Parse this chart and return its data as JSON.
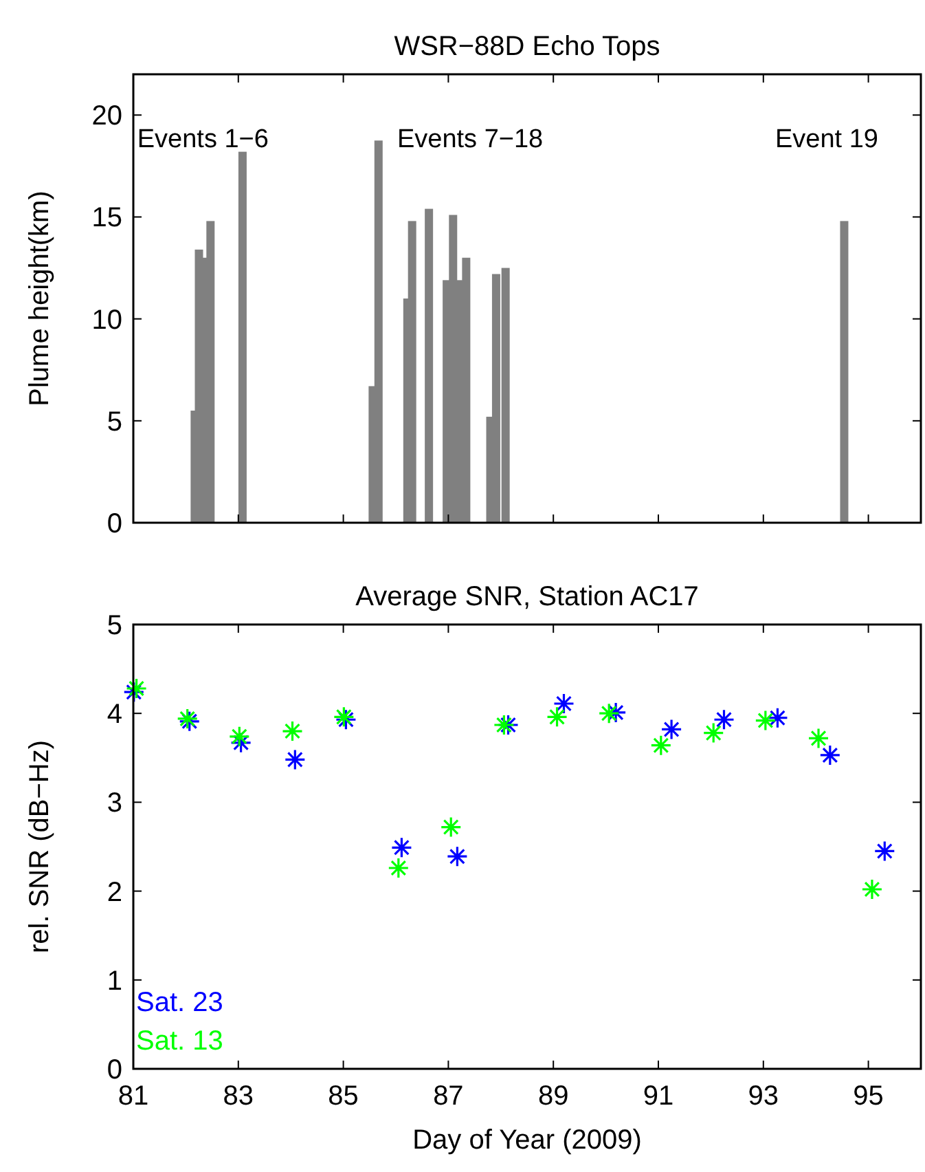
{
  "chart_data": [
    {
      "type": "bar",
      "title": "WSR−88D Echo Tops",
      "ylabel": "Plume height(km)",
      "color": "#808080",
      "x": [
        82.17,
        82.25,
        82.36,
        82.47,
        83.08,
        85.56,
        85.67,
        86.22,
        86.31,
        86.63,
        86.97,
        87.09,
        87.22,
        87.34,
        87.8,
        87.91,
        88.09,
        94.54
      ],
      "values": [
        5.5,
        13.4,
        13.0,
        14.8,
        18.2,
        6.7,
        18.75,
        11.0,
        14.8,
        15.4,
        11.9,
        15.1,
        11.9,
        13.0,
        5.2,
        12.2,
        12.5,
        14.8
      ],
      "xlim": [
        81,
        96
      ],
      "xticks": [
        {
          "value": 81,
          "label": null
        },
        {
          "value": 83,
          "label": null
        },
        {
          "value": 85,
          "label": null
        },
        {
          "value": 87,
          "label": null
        },
        {
          "value": 89,
          "label": null
        },
        {
          "value": 91,
          "label": null
        },
        {
          "value": 93,
          "label": null
        },
        {
          "value": 95,
          "label": null
        }
      ],
      "ylim": [
        0,
        22
      ],
      "yticks": [
        0,
        5,
        10,
        15,
        20
      ],
      "tick_labels": "y",
      "annotations": [
        "Events 1−6",
        "Events 7−18",
        "Event 19"
      ]
    },
    {
      "type": "scatter",
      "title": "Average SNR, Station AC17",
      "xlabel": "Day of Year (2009)",
      "ylabel": "rel. SNR (dB−Hz)",
      "marker": "cross",
      "legend": "bottom left",
      "xlim": [
        81,
        96
      ],
      "xticks": [
        81,
        83,
        85,
        87,
        89,
        91,
        93,
        95
      ],
      "ylim": [
        0,
        5
      ],
      "yticks": [
        0,
        1,
        2,
        3,
        4,
        5
      ],
      "series": [
        {
          "name": "Sat. 23",
          "color": "#0000ff",
          "x": [
            81.01,
            82.07,
            83.05,
            84.08,
            85.05,
            86.11,
            87.17,
            88.14,
            89.2,
            90.19,
            91.25,
            92.25,
            93.27,
            94.27,
            95.31
          ],
          "values": [
            4.24,
            3.91,
            3.67,
            3.48,
            3.93,
            2.49,
            2.39,
            3.87,
            4.11,
            4.01,
            3.82,
            3.93,
            3.95,
            3.53,
            2.45
          ]
        },
        {
          "name": "Sat. 13",
          "color": "#00ff00",
          "x": [
            81.06,
            82.03,
            83.02,
            84.03,
            85.01,
            86.05,
            87.05,
            88.06,
            89.07,
            90.06,
            91.05,
            92.05,
            93.04,
            94.05,
            95.07
          ],
          "values": [
            4.28,
            3.94,
            3.74,
            3.8,
            3.96,
            2.26,
            2.72,
            3.87,
            3.96,
            4.0,
            3.64,
            3.78,
            3.92,
            3.72,
            2.02
          ]
        }
      ]
    }
  ]
}
